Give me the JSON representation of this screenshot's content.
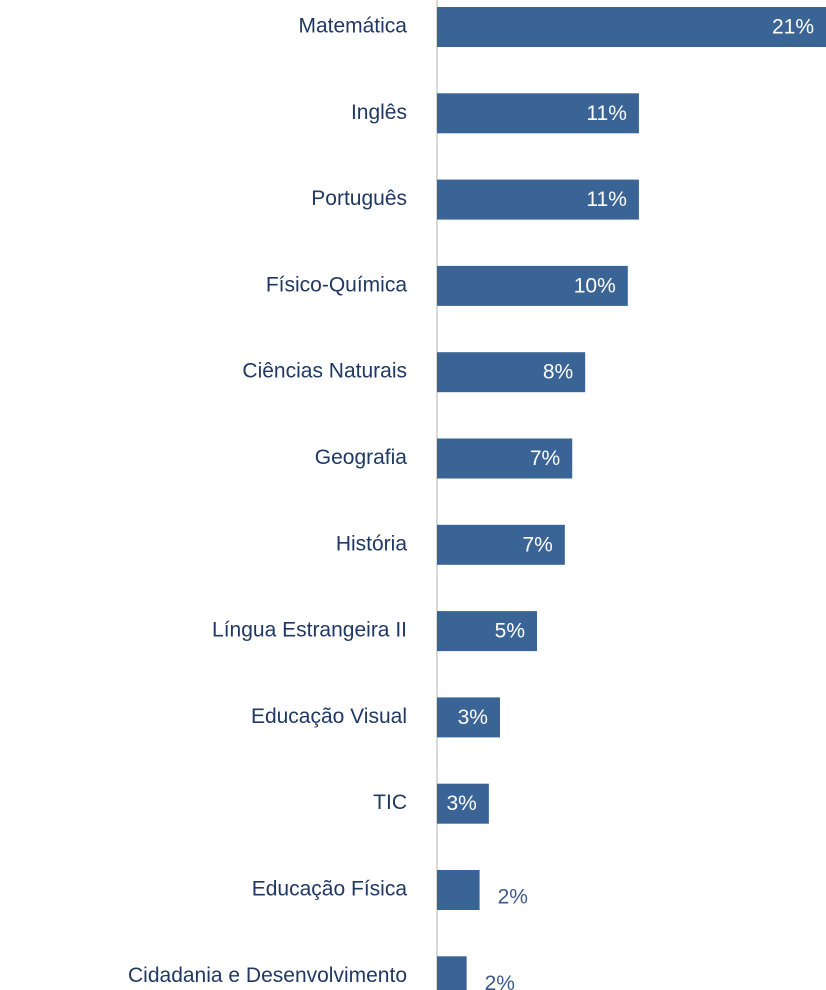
{
  "chart_data": {
    "type": "bar",
    "orientation": "horizontal",
    "categories": [
      "Matemática",
      "Inglês",
      "Português",
      "Físico-Química",
      "Ciências Naturais",
      "Geografia",
      "História",
      "Língua Estrangeira II",
      "Educação Visual",
      "TIC",
      "Educação Física",
      "Cidadania e Desenvolvimento"
    ],
    "values": [
      21,
      10.9,
      10.9,
      10.3,
      8.0,
      7.3,
      6.9,
      5.4,
      3.4,
      2.8,
      2.3,
      1.6
    ],
    "value_labels": [
      "21%",
      "11%",
      "11%",
      "10%",
      "8%",
      "7%",
      "7%",
      "5%",
      "3%",
      "3%",
      "2%",
      "2%"
    ],
    "color": "#3a6496",
    "xlim": [
      0,
      21
    ]
  }
}
